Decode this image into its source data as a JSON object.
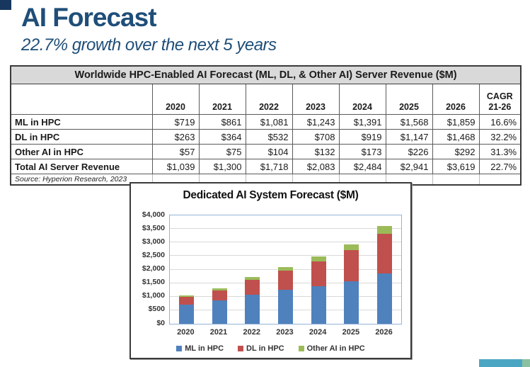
{
  "page": {
    "title": "AI Forecast",
    "subtitle": "22.7% growth over the next 5 years"
  },
  "table": {
    "title": "Worldwide HPC-Enabled AI Forecast (ML, DL, & Other AI) Server Revenue ($M)",
    "col_headers": [
      "",
      "2020",
      "2021",
      "2022",
      "2023",
      "2024",
      "2025",
      "2026",
      "CAGR\n21-26"
    ],
    "rows": [
      {
        "label": "ML in HPC",
        "values": [
          "$719",
          "$861",
          "$1,081",
          "$1,243",
          "$1,391",
          "$1,568",
          "$1,859",
          "16.6%"
        ]
      },
      {
        "label": "DL in HPC",
        "values": [
          "$263",
          "$364",
          "$532",
          "$708",
          "$919",
          "$1,147",
          "$1,468",
          "32.2%"
        ]
      },
      {
        "label": "Other AI in HPC",
        "values": [
          "$57",
          "$75",
          "$104",
          "$132",
          "$173",
          "$226",
          "$292",
          "31.3%"
        ]
      },
      {
        "label": "Total AI Server Revenue",
        "values": [
          "$1,039",
          "$1,300",
          "$1,718",
          "$2,083",
          "$2,484",
          "$2,941",
          "$3,619",
          "22.7%"
        ]
      }
    ],
    "source": "Source: Hyperion Research, 2023"
  },
  "chart_data": {
    "type": "bar",
    "stacked": true,
    "title": "Dedicated AI System Forecast ($M)",
    "categories": [
      "2020",
      "2021",
      "2022",
      "2023",
      "2024",
      "2025",
      "2026"
    ],
    "series": [
      {
        "name": "ML in HPC",
        "color": "#4F81BD",
        "values": [
          719,
          861,
          1081,
          1243,
          1391,
          1568,
          1859
        ]
      },
      {
        "name": "DL in HPC",
        "color": "#C0504D",
        "values": [
          263,
          364,
          532,
          708,
          919,
          1147,
          1468
        ]
      },
      {
        "name": "Other AI in HPC",
        "color": "#9BBB59",
        "values": [
          57,
          75,
          104,
          132,
          173,
          226,
          292
        ]
      }
    ],
    "ylim": [
      0,
      4000
    ],
    "ytick_step": 500,
    "ytick_labels": [
      "$0",
      "$500",
      "$1,000",
      "$1,500",
      "$2,000",
      "$2,500",
      "$3,000",
      "$3,500",
      "$4,000"
    ],
    "grid": true,
    "legend_position": "bottom"
  },
  "colors": {
    "accent_navy": "#1F4E79",
    "corner_navy": "#17375E",
    "table_header_bg": "#D9D9D9",
    "bar_blue": "#4F81BD",
    "bar_red": "#C0504D",
    "bar_green": "#9BBB59",
    "plot_border_blue": "#95B3D7",
    "footer_teal": "#4BA6C4",
    "footer_green": "#8BC1A0"
  }
}
